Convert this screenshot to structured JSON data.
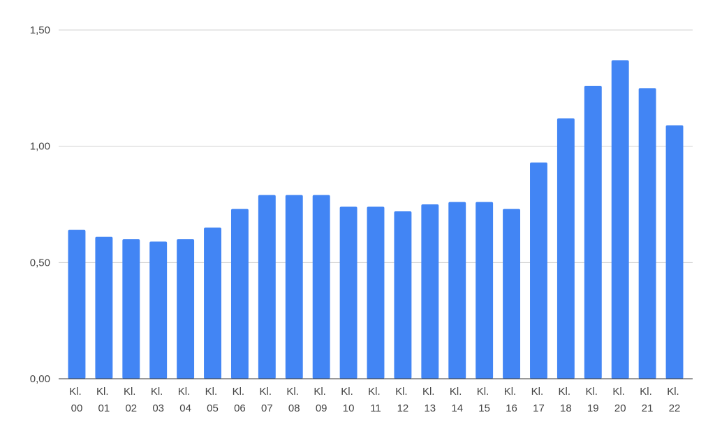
{
  "chart_data": {
    "type": "bar",
    "categories": [
      "Kl. 00",
      "Kl. 01",
      "Kl. 02",
      "Kl. 03",
      "Kl. 04",
      "Kl. 05",
      "Kl. 06",
      "Kl. 07",
      "Kl. 08",
      "Kl. 09",
      "Kl. 10",
      "Kl. 11",
      "Kl. 12",
      "Kl. 13",
      "Kl. 14",
      "Kl. 15",
      "Kl. 16",
      "Kl. 17",
      "Kl. 18",
      "Kl. 19",
      "Kl. 20",
      "Kl. 21",
      "Kl. 22"
    ],
    "values": [
      0.64,
      0.61,
      0.6,
      0.59,
      0.6,
      0.65,
      0.73,
      0.79,
      0.79,
      0.79,
      0.74,
      0.74,
      0.72,
      0.75,
      0.76,
      0.76,
      0.73,
      0.93,
      1.12,
      1.26,
      1.37,
      1.25,
      1.09
    ],
    "color": "#4285f4",
    "ylim": [
      0,
      1.5
    ],
    "yticks": [
      {
        "value": 0,
        "label": "0,00"
      },
      {
        "value": 0.5,
        "label": "0,50"
      },
      {
        "value": 1,
        "label": "1,00"
      },
      {
        "value": 1.5,
        "label": "1,50"
      }
    ],
    "grid": true
  }
}
